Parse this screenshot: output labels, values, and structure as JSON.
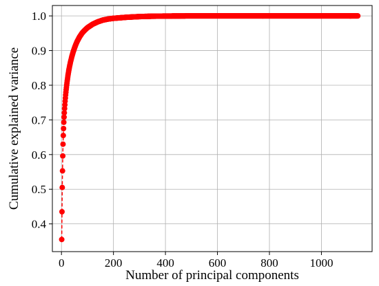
{
  "chart_data": {
    "type": "line",
    "title": "",
    "xlabel": "Number of principal components",
    "ylabel": "Cumulative explained variance",
    "xlim": [
      -35,
      1195
    ],
    "ylim": [
      0.32,
      1.03
    ],
    "xticks": [
      0,
      200,
      400,
      600,
      800,
      1000
    ],
    "yticks": [
      0.4,
      0.5,
      0.6,
      0.7,
      0.8,
      0.9,
      1.0
    ],
    "grid": true,
    "series": [
      {
        "color": "#ff0000",
        "line_style": "dashed",
        "marker": "circle",
        "n_points": 1140,
        "x": [
          1,
          2,
          3,
          4,
          5,
          6,
          7,
          8,
          9,
          10,
          12,
          14,
          16,
          18,
          20,
          22,
          25,
          28,
          31,
          35,
          40,
          45,
          50,
          55,
          60,
          70,
          80,
          90,
          100,
          120,
          140,
          160,
          180,
          200,
          250,
          300,
          350,
          400,
          500,
          600,
          700,
          800,
          900,
          1000,
          1100,
          1140
        ],
        "y": [
          0.355,
          0.435,
          0.505,
          0.553,
          0.596,
          0.63,
          0.655,
          0.675,
          0.693,
          0.708,
          0.733,
          0.754,
          0.772,
          0.787,
          0.8,
          0.812,
          0.828,
          0.842,
          0.854,
          0.868,
          0.883,
          0.896,
          0.907,
          0.917,
          0.926,
          0.94,
          0.951,
          0.959,
          0.966,
          0.976,
          0.983,
          0.988,
          0.991,
          0.993,
          0.996,
          0.998,
          0.999,
          0.9995,
          1.0,
          1.0,
          1.0,
          1.0,
          1.0,
          1.0,
          1.0,
          1.0
        ]
      }
    ]
  }
}
